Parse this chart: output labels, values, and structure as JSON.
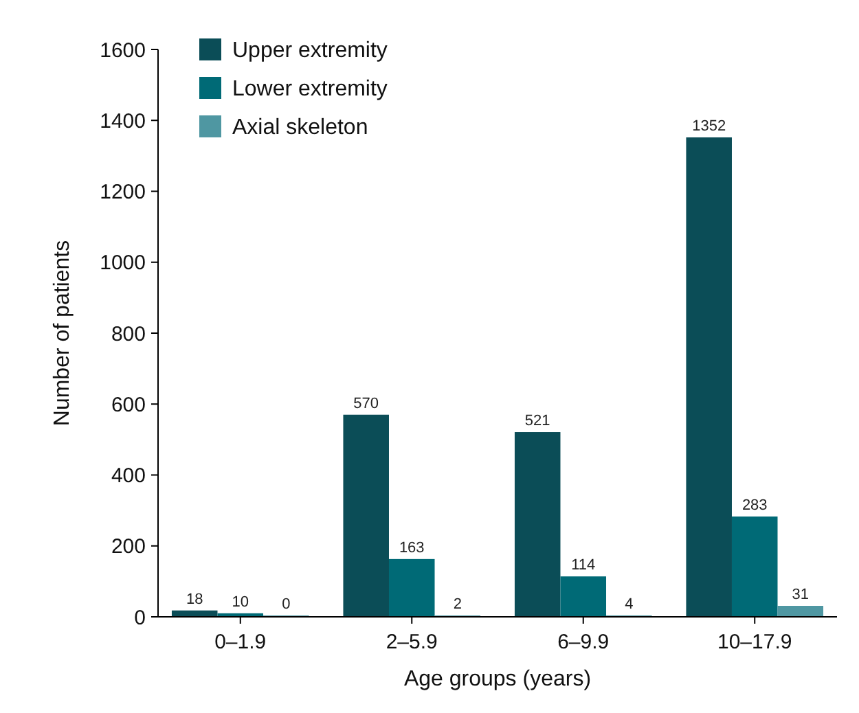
{
  "chart_data": {
    "type": "bar",
    "xlabel": "Age groups (years)",
    "ylabel": "Number of patients",
    "categories": [
      "0–1.9",
      "2–5.9",
      "6–9.9",
      "10–17.9"
    ],
    "series": [
      {
        "name": "Upper extremity",
        "color": "#0b4d57",
        "values": [
          18,
          570,
          521,
          1352
        ]
      },
      {
        "name": "Lower extremity",
        "color": "#006a76",
        "values": [
          10,
          163,
          114,
          283
        ]
      },
      {
        "name": "Axial skeleton",
        "color": "#4f97a2",
        "values": [
          0,
          2,
          4,
          31
        ]
      }
    ],
    "ylim": [
      0,
      1600
    ],
    "yticks": [
      0,
      200,
      400,
      600,
      800,
      1000,
      1200,
      1400,
      1600
    ],
    "grid": false,
    "legend": "top left",
    "data_labels": true
  }
}
